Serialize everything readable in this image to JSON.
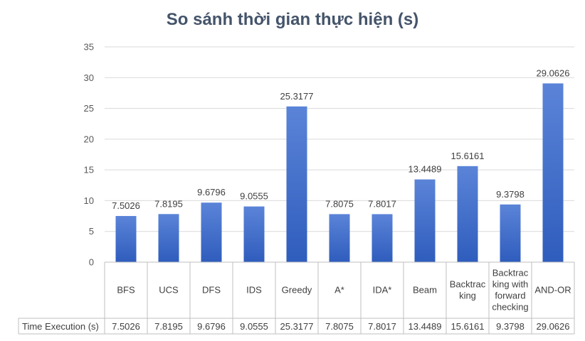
{
  "chart_data": {
    "type": "bar",
    "title": "So sánh thời gian thực hiện (s)",
    "categories": [
      "BFS",
      "UCS",
      "DFS",
      "IDS",
      "Greedy",
      "A*",
      "IDA*",
      "Beam",
      "Backtracking",
      "Backtracking with forward checking",
      "AND-OR"
    ],
    "category_display_lines": [
      [
        "BFS"
      ],
      [
        "UCS"
      ],
      [
        "DFS"
      ],
      [
        "IDS"
      ],
      [
        "Greedy"
      ],
      [
        "A*"
      ],
      [
        "IDA*"
      ],
      [
        "Beam"
      ],
      [
        "Backtrac",
        "king"
      ],
      [
        "Backtrac",
        "king with",
        "forward",
        "checking"
      ],
      [
        "AND-OR"
      ]
    ],
    "series": [
      {
        "name": "Time Execution (s)",
        "values": [
          7.5026,
          7.8195,
          9.6796,
          9.0555,
          25.3177,
          7.8075,
          7.8017,
          13.4489,
          15.6161,
          9.3798,
          29.0626
        ],
        "labels": [
          "7.5026",
          "7.8195",
          "9.6796",
          "9.0555",
          "25.3177",
          "7.8075",
          "7.8017",
          "13.4489",
          "15.6161",
          "9.3798",
          "29.0626"
        ]
      }
    ],
    "ylim": [
      0,
      35
    ],
    "yticks": [
      "0",
      "5",
      "10",
      "15",
      "20",
      "25",
      "30",
      "35"
    ],
    "grid": true,
    "legend": "data-table",
    "colors": {
      "bar_top": "#5b84d8",
      "bar_bottom": "#2f5dbd",
      "grid": "#d9d9d9",
      "title": "#44546a"
    }
  }
}
